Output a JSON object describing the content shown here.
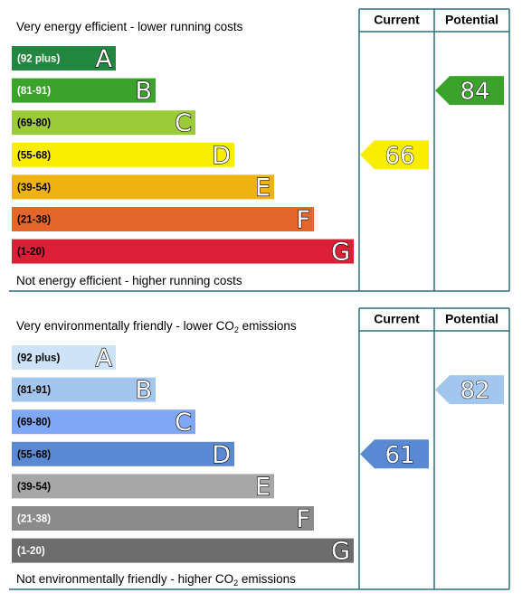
{
  "charts": [
    {
      "heading_current": "Current",
      "heading_potential": "Potential",
      "top_caption": [
        "Very energy efficient - lower running costs"
      ],
      "bottom_caption": [
        "Not energy efficient - higher running costs"
      ],
      "bands": [
        {
          "range": "(92 plus)",
          "letter": "A",
          "color": "#23883f",
          "text_color": "#ffffff"
        },
        {
          "range": "(81-91)",
          "letter": "B",
          "color": "#3ba32b",
          "text_color": "#ffffff"
        },
        {
          "range": "(69-80)",
          "letter": "C",
          "color": "#9bca3b",
          "text_color": "#000000"
        },
        {
          "range": "(55-68)",
          "letter": "D",
          "color": "#f9ee00",
          "text_color": "#000000"
        },
        {
          "range": "(39-54)",
          "letter": "E",
          "color": "#f0b210",
          "text_color": "#000000"
        },
        {
          "range": "(21-38)",
          "letter": "F",
          "color": "#e5662a",
          "text_color": "#000000"
        },
        {
          "range": "(1-20)",
          "letter": "G",
          "color": "#dc1e36",
          "text_color": "#000000"
        }
      ],
      "current": 66,
      "potential": 84
    },
    {
      "heading_current": "Current",
      "heading_potential": "Potential",
      "top_caption": [
        "Very environmentally friendly - lower CO",
        "2",
        " emissions"
      ],
      "bottom_caption": [
        "Not environmentally friendly - higher CO",
        "2",
        " emissions"
      ],
      "bands": [
        {
          "range": "(92 plus)",
          "letter": "A",
          "color": "#cde3f7",
          "text_color": "#000000"
        },
        {
          "range": "(81-91)",
          "letter": "B",
          "color": "#a3c6ef",
          "text_color": "#000000"
        },
        {
          "range": "(69-80)",
          "letter": "C",
          "color": "#80a7f4",
          "text_color": "#000000"
        },
        {
          "range": "(55-68)",
          "letter": "D",
          "color": "#5a89d4",
          "text_color": "#000000"
        },
        {
          "range": "(39-54)",
          "letter": "E",
          "color": "#a7a7a7",
          "text_color": "#000000"
        },
        {
          "range": "(21-38)",
          "letter": "F",
          "color": "#8b8b8b",
          "text_color": "#ffffff"
        },
        {
          "range": "(1-20)",
          "letter": "G",
          "color": "#6d6d6d",
          "text_color": "#ffffff"
        }
      ],
      "current": 61,
      "potential": 82
    }
  ]
}
